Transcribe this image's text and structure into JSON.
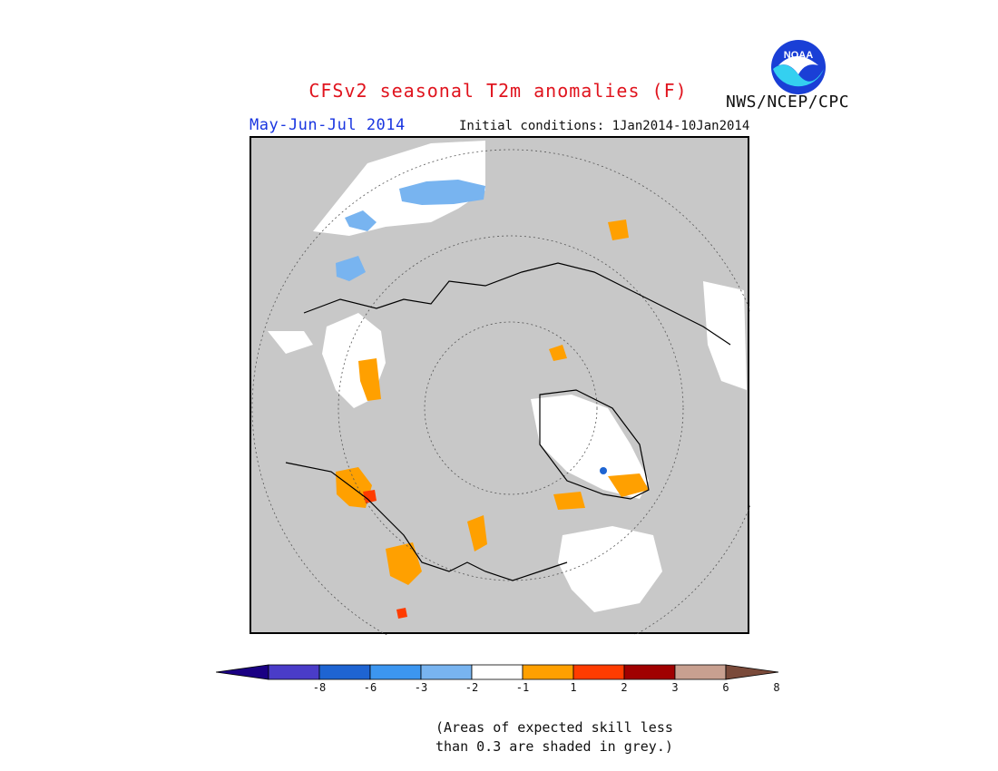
{
  "header": {
    "title": "CFSv2 seasonal T2m anomalies (F)",
    "agency": "NWS/NCEP/CPC",
    "logo_text": "NOAA",
    "season": "May-Jun-Jul 2014",
    "initial_conditions": "Initial conditions: 1Jan2014-10Jan2014"
  },
  "map": {
    "projection": "north polar stereographic",
    "land_color": "#c8c8c8",
    "ocean_color": "#c8c8c8",
    "skill_mask_color": "#c8c8c8",
    "coastline_color": "#000000",
    "grid_color": "#555555"
  },
  "legend": {
    "colors": [
      "#1a0083",
      "#4a3cc8",
      "#1e64d2",
      "#3c96f0",
      "#78b4f0",
      "#ffffff",
      "#ffa000",
      "#ff3c00",
      "#a00000",
      "#c8a090",
      "#7a4a3a"
    ],
    "tick_labels": [
      "-8",
      "-6",
      "-3",
      "-2",
      "-1",
      "1",
      "2",
      "3",
      "6",
      "8"
    ]
  },
  "note": {
    "line1": "(Areas of expected skill less",
    "line2": "than 0.3 are shaded in grey.)"
  }
}
